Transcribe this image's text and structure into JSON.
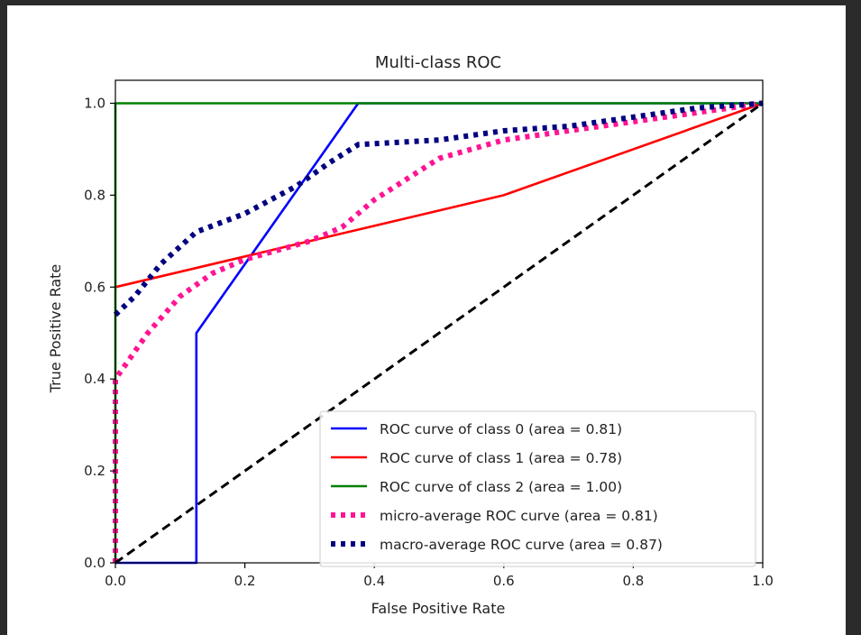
{
  "chart_data": {
    "type": "line",
    "title": "Multi-class ROC",
    "xlabel": "False Positive Rate",
    "ylabel": "True Positive Rate",
    "xlim": [
      0.0,
      1.0
    ],
    "ylim": [
      0.0,
      1.05
    ],
    "x_ticks": [
      "0.0",
      "0.2",
      "0.4",
      "0.6",
      "0.8",
      "1.0"
    ],
    "y_ticks": [
      "0.0",
      "0.2",
      "0.4",
      "0.6",
      "0.8",
      "1.0"
    ],
    "grid": false,
    "legend_position": "lower-right",
    "series": [
      {
        "name": "ROC curve of class 0 (area = 0.81)",
        "color": "#0000ff",
        "style": "solid",
        "x": [
          0.0,
          0.125,
          0.125,
          0.375,
          1.0
        ],
        "y": [
          0.0,
          0.0,
          0.5,
          1.0,
          1.0
        ]
      },
      {
        "name": "ROC curve of class 1 (area = 0.78)",
        "color": "#ff0000",
        "style": "solid",
        "x": [
          0.0,
          0.6,
          1.0
        ],
        "y": [
          0.6,
          0.8,
          1.0
        ]
      },
      {
        "name": "ROC curve of class 2 (area = 1.00)",
        "color": "#008000",
        "style": "solid",
        "x": [
          0.0,
          0.0,
          1.0
        ],
        "y": [
          0.0,
          1.0,
          1.0
        ]
      },
      {
        "name": "micro-average ROC curve (area = 0.81)",
        "color": "#ff1493",
        "style": "dotted",
        "x": [
          0.0,
          0.0,
          0.02,
          0.05,
          0.1,
          0.15,
          0.2,
          0.3,
          0.35,
          0.4,
          0.5,
          0.6,
          0.7,
          0.8,
          0.9,
          1.0
        ],
        "y": [
          0.0,
          0.4,
          0.44,
          0.5,
          0.58,
          0.63,
          0.66,
          0.7,
          0.73,
          0.79,
          0.88,
          0.92,
          0.94,
          0.96,
          0.98,
          1.0
        ]
      },
      {
        "name": "macro-average ROC curve (area = 0.87)",
        "color": "#000080",
        "style": "dotted",
        "x": [
          0.0,
          0.03,
          0.07,
          0.125,
          0.2,
          0.28,
          0.33,
          0.375,
          0.5,
          0.6,
          0.7,
          0.8,
          0.9,
          1.0
        ],
        "y": [
          0.54,
          0.58,
          0.65,
          0.72,
          0.76,
          0.82,
          0.87,
          0.91,
          0.92,
          0.94,
          0.95,
          0.97,
          0.99,
          1.0
        ]
      },
      {
        "color": "#000000",
        "style": "dashed",
        "x": [
          0.0,
          1.0
        ],
        "y": [
          0.0,
          1.0
        ]
      }
    ]
  }
}
